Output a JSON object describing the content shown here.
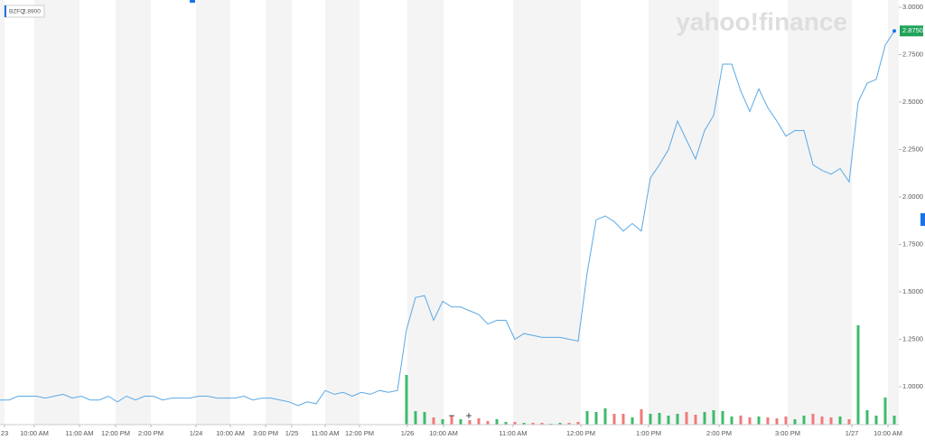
{
  "chart_data": {
    "type": "line",
    "watermark": "yahoo!finance",
    "legend_price": "2.8900",
    "zoom_out": "−",
    "zoom_in": "+",
    "current_price": {
      "value": 2.875,
      "label": "2.8750"
    },
    "x": [
      0,
      1,
      2,
      3,
      4,
      5,
      6,
      7,
      8,
      9,
      10,
      11,
      12,
      13,
      14,
      15,
      16,
      17,
      18,
      19,
      20,
      21,
      22,
      23,
      24,
      25,
      26,
      27,
      28,
      29,
      30,
      31,
      32,
      33,
      34,
      35,
      36,
      37,
      38,
      39,
      40,
      41,
      42,
      43,
      44,
      45,
      46,
      47,
      48,
      49,
      50,
      51,
      52,
      53,
      54,
      55,
      56,
      57,
      58,
      59,
      60,
      61,
      62,
      63,
      64,
      65,
      66,
      67,
      68,
      69,
      70,
      71,
      72,
      73,
      74,
      75,
      76,
      77,
      78,
      79,
      80,
      81,
      82,
      83,
      84,
      85,
      86,
      87,
      88,
      89,
      90,
      91,
      92,
      93,
      94,
      95,
      96,
      97,
      98,
      99
    ],
    "series": [
      {
        "name": "BZFQ",
        "color": "#5aa9e6",
        "values": [
          0.93,
          0.93,
          0.95,
          0.95,
          0.95,
          0.94,
          0.95,
          0.96,
          0.94,
          0.95,
          0.93,
          0.93,
          0.95,
          0.92,
          0.95,
          0.93,
          0.95,
          0.95,
          0.93,
          0.94,
          0.94,
          0.94,
          0.95,
          0.95,
          0.94,
          0.94,
          0.94,
          0.95,
          0.93,
          0.94,
          0.94,
          0.93,
          0.92,
          0.9,
          0.92,
          0.91,
          0.98,
          0.96,
          0.97,
          0.95,
          0.97,
          0.96,
          0.98,
          0.97,
          0.98,
          1.3,
          1.47,
          1.48,
          1.35,
          1.45,
          1.42,
          1.42,
          1.4,
          1.38,
          1.33,
          1.35,
          1.35,
          1.25,
          1.28,
          1.27,
          1.26,
          1.26,
          1.26,
          1.25,
          1.24,
          1.6,
          1.88,
          1.9,
          1.87,
          1.82,
          1.86,
          1.82,
          2.1,
          2.17,
          2.25,
          2.4,
          2.3,
          2.2,
          2.35,
          2.43,
          2.7,
          2.7,
          2.56,
          2.45,
          2.57,
          2.47,
          2.4,
          2.32,
          2.35,
          2.35,
          2.17,
          2.14,
          2.12,
          2.15,
          2.08,
          2.5,
          2.6,
          2.62,
          2.8,
          2.875
        ]
      }
    ],
    "volume": {
      "up_color": "#3dbb6c",
      "down_color": "#f07a7a",
      "values": [
        0,
        0,
        0,
        0,
        0,
        0,
        0,
        0,
        0,
        0,
        0,
        0,
        0,
        0,
        0,
        0,
        0,
        0,
        0,
        0,
        0,
        0,
        0,
        0,
        0,
        0,
        0,
        0,
        0,
        0,
        0,
        0,
        0,
        0,
        0,
        0,
        0,
        0,
        0,
        0,
        0,
        0,
        0,
        0,
        0,
        55,
        15,
        14,
        8,
        6,
        10,
        6,
        5,
        7,
        4,
        6,
        3,
        3,
        2,
        2,
        2,
        1,
        2,
        2,
        3,
        15,
        14,
        18,
        12,
        12,
        8,
        17,
        12,
        13,
        10,
        12,
        14,
        11,
        14,
        16,
        15,
        9,
        10,
        8,
        9,
        8,
        7,
        9,
        6,
        10,
        12,
        9,
        8,
        9,
        6,
        110,
        16,
        10,
        30,
        10
      ]
    },
    "xlim": [
      0,
      99.5
    ],
    "xticks": [
      {
        "value": 0.5,
        "label": "23"
      },
      {
        "value": 3.8,
        "label": "10:00 AM"
      },
      {
        "value": 8.8,
        "label": "11:00 AM"
      },
      {
        "value": 12.8,
        "label": "12:00 PM"
      },
      {
        "value": 16.7,
        "label": "2:00 PM"
      },
      {
        "value": 21.7,
        "label": "1/24"
      },
      {
        "value": 25.5,
        "label": "10:00 AM"
      },
      {
        "value": 29.4,
        "label": "3:00 PM"
      },
      {
        "value": 32.3,
        "label": "1/25"
      },
      {
        "value": 36,
        "label": "11:00 AM"
      },
      {
        "value": 39.8,
        "label": "12:00 PM"
      },
      {
        "value": 45.1,
        "label": "1/26"
      },
      {
        "value": 49.1,
        "label": "10:00 AM"
      },
      {
        "value": 56.8,
        "label": "11:00 AM"
      },
      {
        "value": 64.3,
        "label": "12:00 PM"
      },
      {
        "value": 71.8,
        "label": "1:00 PM"
      },
      {
        "value": 79.6,
        "label": "2:00 PM"
      },
      {
        "value": 87.2,
        "label": "3:00 PM"
      },
      {
        "value": 94.3,
        "label": "1/27"
      },
      {
        "value": 98.3,
        "label": "10:00 AM"
      }
    ],
    "ylim": [
      0.8,
      3.0
    ],
    "yticks": [
      {
        "value": 1,
        "label": "1.0000"
      },
      {
        "value": 1.25,
        "label": "1.2500"
      },
      {
        "value": 1.5,
        "label": "1.5000"
      },
      {
        "value": 1.75,
        "label": "1.7500"
      },
      {
        "value": 2,
        "label": "2.0000"
      },
      {
        "value": 2.25,
        "label": "2.2500"
      },
      {
        "value": 2.5,
        "label": "2.5000"
      },
      {
        "value": 2.75,
        "label": "2.7500"
      },
      {
        "value": 3,
        "label": "3.0000"
      }
    ]
  }
}
